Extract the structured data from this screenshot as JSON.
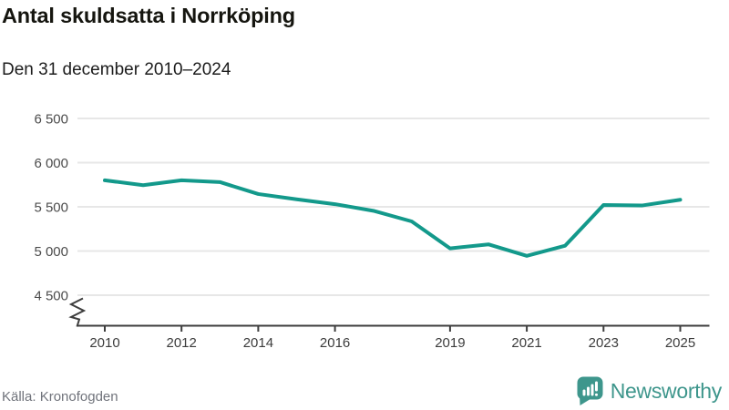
{
  "header": {
    "title": "Antal skuldsatta i Norrköping",
    "subtitle": "Den 31 december 2010–2024"
  },
  "footer": {
    "source": "Källa: Kronofogden",
    "brand": "Newsworthy"
  },
  "colors": {
    "line": "#13998b",
    "brand_teal": "#3e968c",
    "grid": "#e7e7e7",
    "axis": "#3d3d3d",
    "source_text": "#70737b"
  },
  "chart_data": {
    "type": "line",
    "title": "Antal skuldsatta i Norrköping",
    "subtitle": "Den 31 december 2010–2024",
    "series": [
      {
        "name": "Antal skuldsatta",
        "x": [
          2010,
          2011,
          2012,
          2013,
          2014,
          2015,
          2016,
          2017,
          2018,
          2019,
          2020,
          2021,
          2022,
          2023,
          2024,
          2025
        ],
        "values": [
          5800,
          5745,
          5800,
          5780,
          5645,
          5585,
          5530,
          5455,
          5335,
          5030,
          5075,
          4945,
          5060,
          5520,
          5515,
          5580
        ]
      }
    ],
    "x_ticks": [
      {
        "pos": 2010,
        "label": "2010"
      },
      {
        "pos": 2012,
        "label": "2012"
      },
      {
        "pos": 2014,
        "label": "2014"
      },
      {
        "pos": 2016,
        "label": "2016"
      },
      {
        "pos": 2019,
        "label": "2019"
      },
      {
        "pos": 2021,
        "label": "2021"
      },
      {
        "pos": 2023,
        "label": "2023"
      },
      {
        "pos": 2025,
        "label": "2025"
      }
    ],
    "y_ticks": [
      {
        "value": 6500,
        "label": "6 500"
      },
      {
        "value": 6000,
        "label": "6 000"
      },
      {
        "value": 5500,
        "label": "5 500"
      },
      {
        "value": 5000,
        "label": "5 000"
      },
      {
        "value": 4500,
        "label": "4 500"
      }
    ],
    "ylim": [
      4500,
      6500
    ],
    "y_axis_break": true,
    "grid": "horizontal",
    "legend": "none",
    "line_color": "#13998b",
    "grid_color": "#e7e7e7",
    "axis_color": "#3d3d3d"
  }
}
